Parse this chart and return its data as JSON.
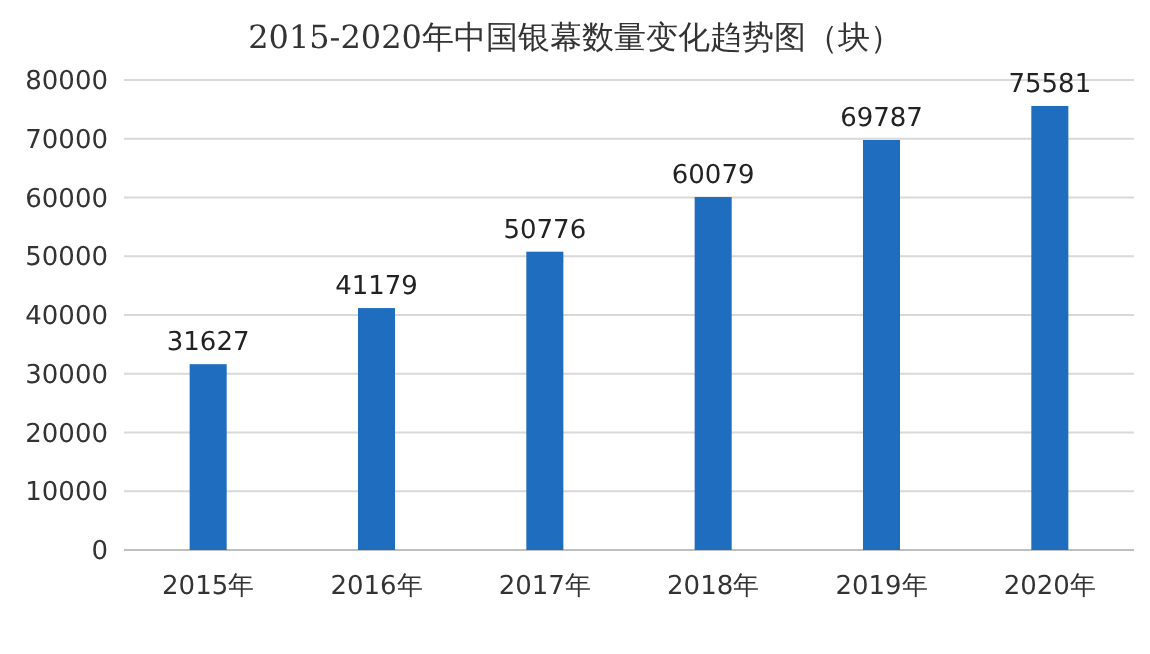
{
  "chart_data": {
    "type": "bar",
    "title": "2015-2020年中国银幕数量变化趋势图（块）",
    "categories": [
      "2015年",
      "2016年",
      "2017年",
      "2018年",
      "2019年",
      "2020年"
    ],
    "values": [
      31627,
      41179,
      50776,
      60079,
      69787,
      75581
    ],
    "color": "#1f6dbf",
    "ylim": [
      0,
      80000
    ],
    "yticks": [
      0,
      10000,
      20000,
      30000,
      40000,
      50000,
      60000,
      70000,
      80000
    ],
    "grid": "y",
    "data_labels": true
  }
}
